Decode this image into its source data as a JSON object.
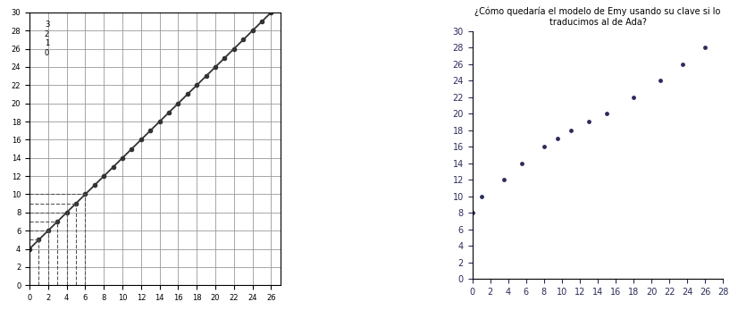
{
  "chart_data": [
    {
      "type": "line",
      "x": [
        0,
        1,
        2,
        3,
        4,
        5,
        6,
        7,
        8,
        9,
        10,
        11,
        12,
        13,
        14,
        15,
        16,
        17,
        18,
        19,
        20,
        21,
        22,
        23,
        24,
        25,
        26
      ],
      "values": [
        4,
        5,
        6,
        7,
        8,
        9,
        10,
        11,
        12,
        13,
        14,
        15,
        16,
        17,
        18,
        19,
        20,
        21,
        22,
        23,
        24,
        25,
        26,
        27,
        28,
        29,
        30
      ],
      "guide_x": [
        1,
        2,
        3,
        4,
        5,
        6
      ],
      "annotations": [
        "3",
        "2",
        "1",
        "0"
      ],
      "xlim": [
        0,
        27
      ],
      "xticks": [
        0,
        2,
        4,
        6,
        8,
        10,
        12,
        14,
        16,
        18,
        20,
        22,
        24,
        26
      ],
      "ylim": [
        0,
        30
      ],
      "yticks": [
        0,
        2,
        4,
        6,
        8,
        10,
        12,
        14,
        16,
        18,
        20,
        22,
        24,
        26,
        28,
        30
      ],
      "color": "#333333",
      "marker": "o",
      "line_style": "solid",
      "grid": true
    },
    {
      "type": "scatter",
      "title": "¿Cómo quedaría el modelo de Emy usando su clave si lo traducimos al de Ada?",
      "x": [
        0,
        1,
        3.5,
        5.5,
        8,
        9.5,
        11,
        13,
        15,
        18,
        21,
        23.5,
        26
      ],
      "values": [
        8,
        10,
        12,
        14,
        16,
        17,
        18,
        19,
        20,
        22,
        24,
        26,
        28
      ],
      "xlim": [
        0,
        28
      ],
      "xticks": [
        0,
        2,
        4,
        6,
        8,
        10,
        12,
        14,
        16,
        18,
        20,
        22,
        24,
        26,
        28
      ],
      "ylim": [
        0,
        30
      ],
      "yticks": [
        0,
        2,
        4,
        6,
        8,
        10,
        12,
        14,
        16,
        18,
        20,
        22,
        24,
        26,
        28,
        30
      ],
      "color": "#2a2a5a",
      "marker": "o",
      "grid": false
    }
  ]
}
